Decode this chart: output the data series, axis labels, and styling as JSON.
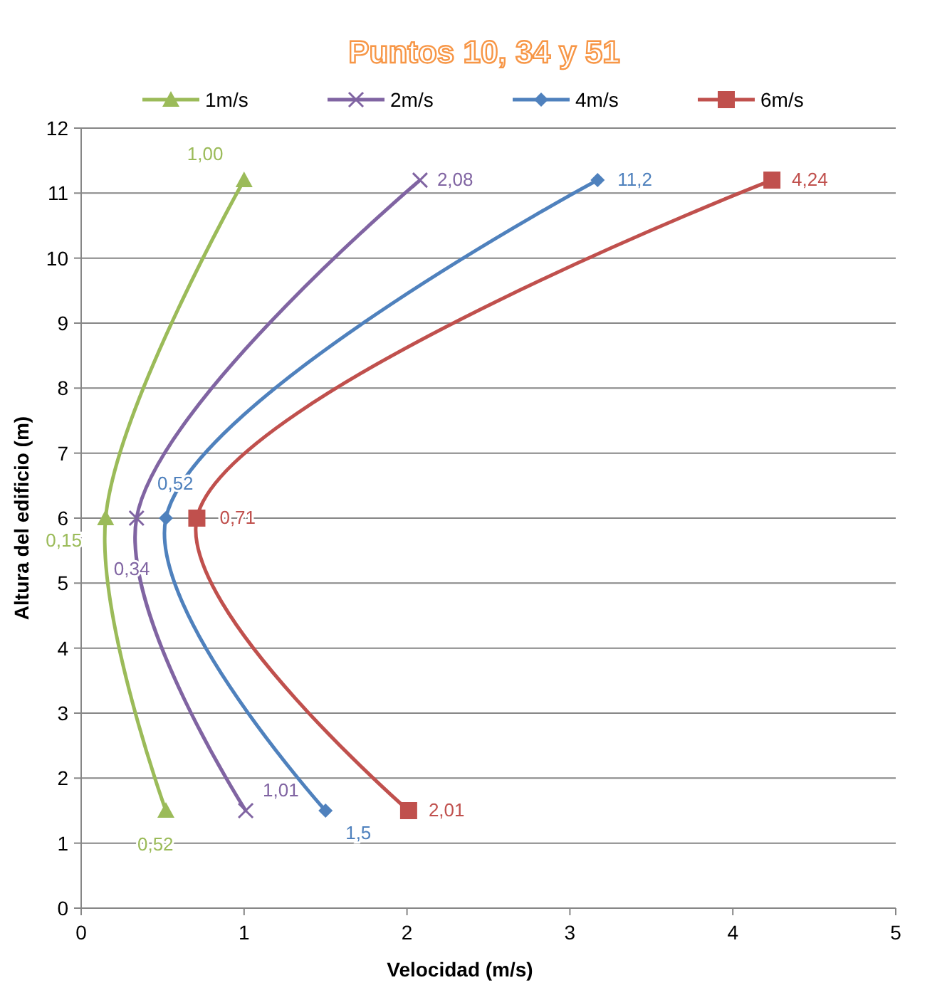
{
  "chart_data": {
    "type": "line",
    "title": "Puntos 10, 34 y 51",
    "xlabel": "Velocidad (m/s)",
    "ylabel": "Altura del edificio (m)",
    "xlim": [
      0,
      5
    ],
    "xticks": [
      0,
      1,
      2,
      3,
      4,
      5
    ],
    "ylim": [
      0,
      12
    ],
    "yticks": [
      0,
      1,
      2,
      3,
      4,
      5,
      6,
      7,
      8,
      9,
      10,
      11,
      12
    ],
    "grid": "y",
    "legend": "top",
    "series": [
      {
        "name": "1m/s",
        "color": "#9bbb59",
        "marker": "triangle",
        "x": [
          0.52,
          0.15,
          1.0
        ],
        "values": [
          1.5,
          6,
          11.2
        ]
      },
      {
        "name": "2m/s",
        "color": "#8064a2",
        "marker": "cross",
        "x": [
          1.01,
          0.34,
          2.08
        ],
        "values": [
          1.5,
          6,
          11.2
        ]
      },
      {
        "name": "4m/s",
        "color": "#4f81bd",
        "marker": "diamond",
        "x": [
          1.5,
          0.52,
          3.17
        ],
        "values": [
          1.5,
          6,
          11.2
        ]
      },
      {
        "name": "6m/s",
        "color": "#c0504d",
        "marker": "square",
        "x": [
          2.01,
          0.71,
          4.24
        ],
        "values": [
          1.5,
          6,
          11.2
        ]
      }
    ],
    "annotations": [
      {
        "text": "0,52",
        "x": 0.52,
        "y": 1.5
      },
      {
        "text": "0,15",
        "x": 0.15,
        "y": 6
      },
      {
        "text": "1,00",
        "x": 1.0,
        "y": 11.2
      },
      {
        "text": "1,01",
        "x": 1.01,
        "y": 1.5
      },
      {
        "text": "0,34",
        "x": 0.34,
        "y": 6
      },
      {
        "text": "2,08",
        "x": 2.08,
        "y": 11.2
      },
      {
        "text": "1,5",
        "x": 1.5,
        "y": 1.5
      },
      {
        "text": "0,52",
        "x": 0.52,
        "y": 6
      },
      {
        "text": "11,2",
        "x": 3.17,
        "y": 11.2
      },
      {
        "text": "2,01",
        "x": 2.01,
        "y": 1.5
      },
      {
        "text": "0,71",
        "x": 0.71,
        "y": 6
      },
      {
        "text": "4,24",
        "x": 4.24,
        "y": 11.2
      }
    ]
  }
}
